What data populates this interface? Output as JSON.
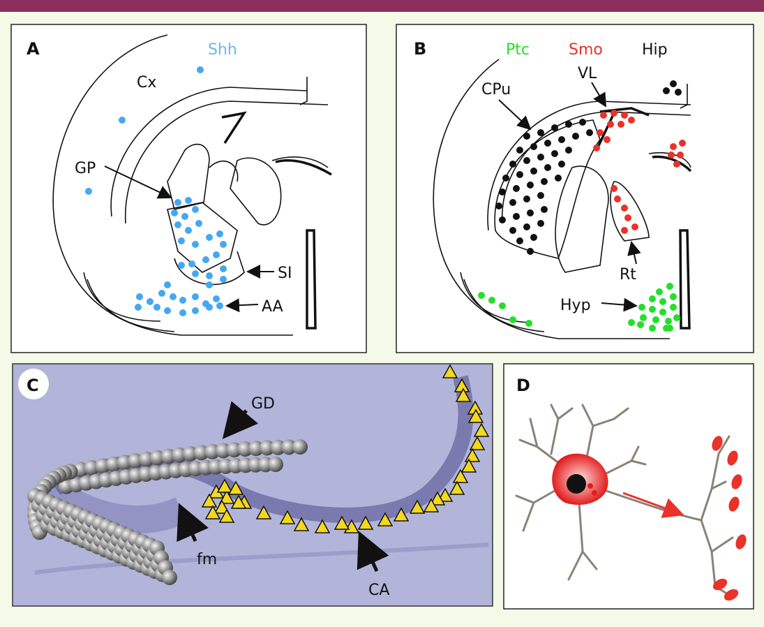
{
  "panels": {
    "a": {
      "letter": "A",
      "gene": "Shh",
      "labels": {
        "cx": "Cx",
        "gp": "GP",
        "si": "SI",
        "aa": "AA"
      }
    },
    "b": {
      "letter": "B",
      "genes": {
        "ptc": "Ptc",
        "smo": "Smo",
        "hip": "Hip"
      },
      "labels": {
        "cpu": "CPu",
        "vl": "VL",
        "rt": "Rt",
        "hyp": "Hyp"
      }
    },
    "c": {
      "letter": "C",
      "labels": {
        "gd": "GD",
        "fm": "fm",
        "ca": "CA"
      }
    },
    "d": {
      "letter": "D"
    }
  },
  "colors": {
    "top_bar": "#8c2f5c",
    "background": "#f4f9e8",
    "shh": "#45a8ee",
    "ptc": "#22e02a",
    "smo": "#e8322a",
    "hip": "#111111",
    "tissue": "#aeb0d8",
    "triangle": "#f2d81e",
    "sphere": "#9a9a9a"
  }
}
